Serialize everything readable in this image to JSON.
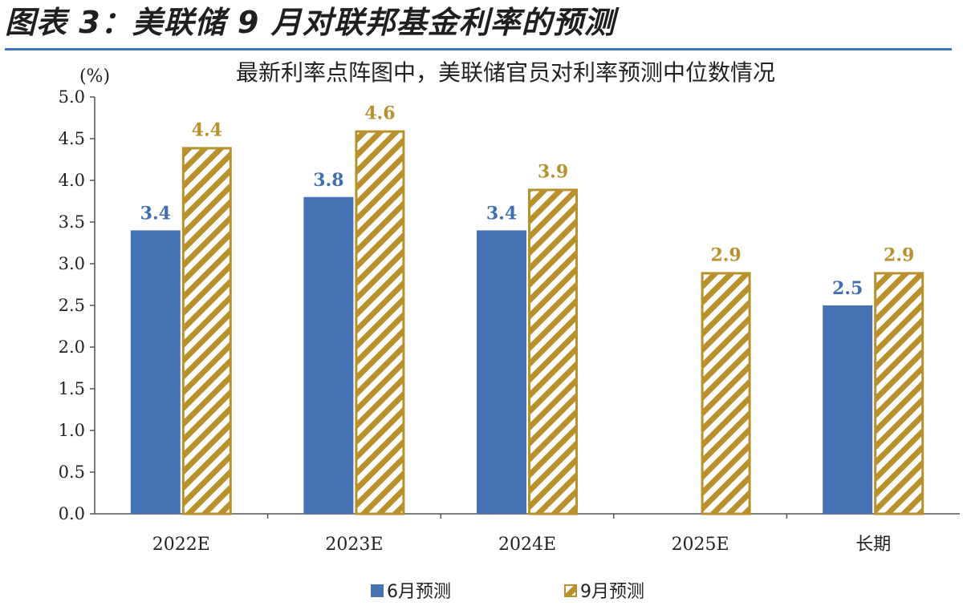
{
  "figure_title": "图表 3：美联储 9 月对联邦基金利率的预测",
  "chart_data": {
    "type": "bar",
    "title": "最新利率点阵图中，美联储官员对利率预测中位数情况",
    "ylabel": "(%)",
    "xlabel": "",
    "ylim": [
      0,
      5
    ],
    "yticks": [
      "0.0",
      "0.5",
      "1.0",
      "1.5",
      "2.0",
      "2.5",
      "3.0",
      "3.5",
      "4.0",
      "4.5",
      "5.0"
    ],
    "categories": [
      "2022E",
      "2023E",
      "2024E",
      "2025E",
      "长期"
    ],
    "series": [
      {
        "name": "6月预测",
        "values": [
          3.4,
          3.8,
          3.4,
          null,
          2.5
        ],
        "labels": [
          "3.4",
          "3.8",
          "3.4",
          "",
          "2.5"
        ],
        "color": "#4472b4",
        "pattern": "solid"
      },
      {
        "name": "9月预测",
        "values": [
          4.4,
          4.6,
          3.9,
          2.9,
          2.9
        ],
        "labels": [
          "4.4",
          "4.6",
          "3.9",
          "2.9",
          "2.9"
        ],
        "color": "#b8912c",
        "pattern": "hatched"
      }
    ],
    "grid": false,
    "legend_position": "bottom"
  }
}
